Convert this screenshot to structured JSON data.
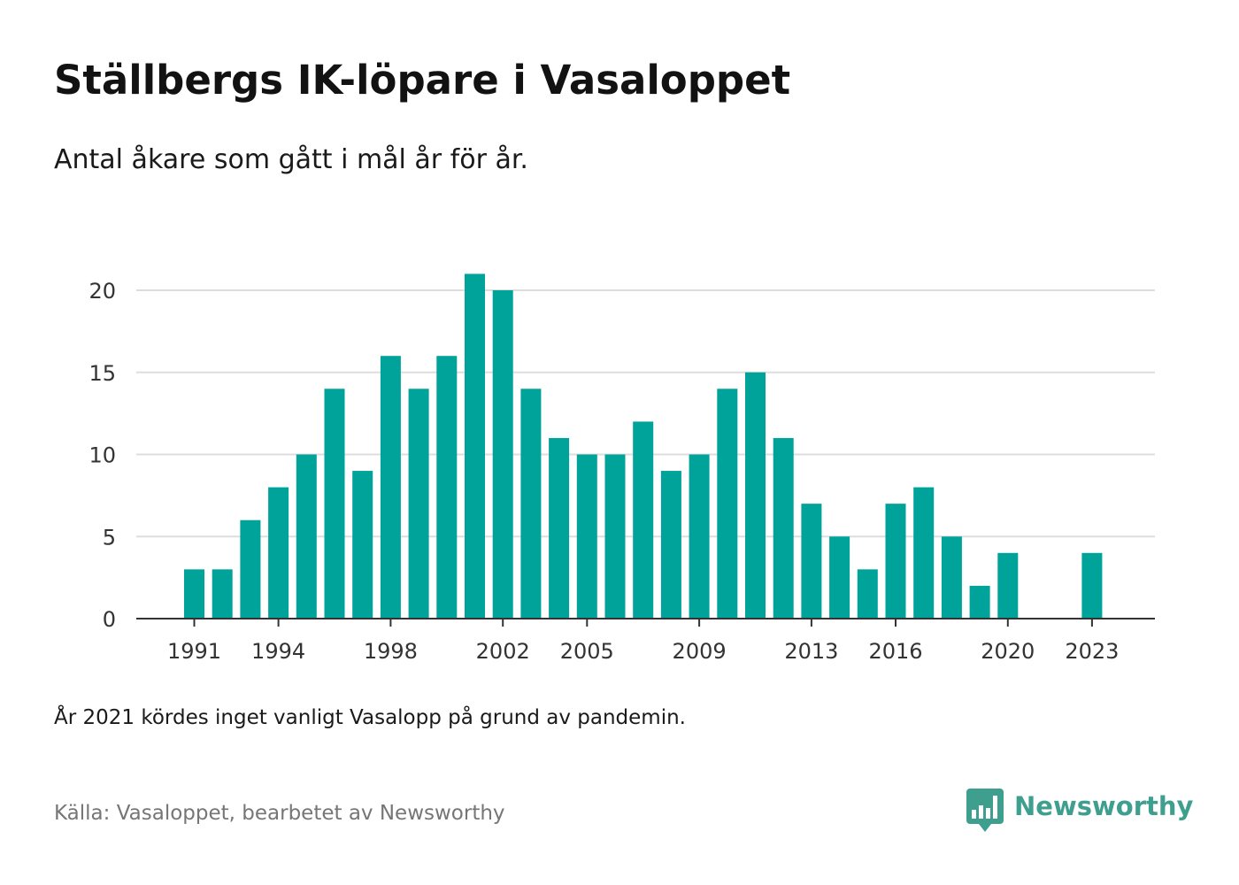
{
  "header": {
    "title": "Ställbergs IK-löpare i Vasaloppet",
    "subtitle": "Antal åkare som gått i mål år för år."
  },
  "footer": {
    "note": "År 2021 kördes inget vanligt Vasalopp på grund av pandemin.",
    "source": "Källa: Vasaloppet, bearbetet av Newsworthy",
    "logo_text": "Newsworthy",
    "logo_icon": "bar-chart-speech-bubble-icon"
  },
  "colors": {
    "bar": "#00a39a",
    "grid": "#dddddd",
    "axis": "#333333",
    "brand": "#3f9f8f"
  },
  "chart_data": {
    "type": "bar",
    "categories": [
      1991,
      1992,
      1993,
      1994,
      1995,
      1996,
      1997,
      1998,
      1999,
      2000,
      2001,
      2002,
      2003,
      2004,
      2005,
      2006,
      2007,
      2008,
      2009,
      2010,
      2011,
      2012,
      2013,
      2014,
      2015,
      2016,
      2017,
      2018,
      2019,
      2020,
      2021,
      2022,
      2023
    ],
    "values": [
      3,
      3,
      6,
      8,
      10,
      14,
      9,
      16,
      14,
      16,
      21,
      20,
      14,
      11,
      10,
      10,
      12,
      9,
      10,
      14,
      15,
      11,
      7,
      5,
      3,
      7,
      8,
      5,
      2,
      4,
      0,
      0,
      4
    ],
    "x_tick_labels": [
      1991,
      1994,
      1998,
      2002,
      2005,
      2009,
      2013,
      2016,
      2020,
      2023
    ],
    "y_ticks": [
      0,
      5,
      10,
      15,
      20
    ],
    "ylim": [
      0,
      22
    ],
    "grid": true,
    "legend": "none",
    "xlabel": "",
    "ylabel": ""
  }
}
